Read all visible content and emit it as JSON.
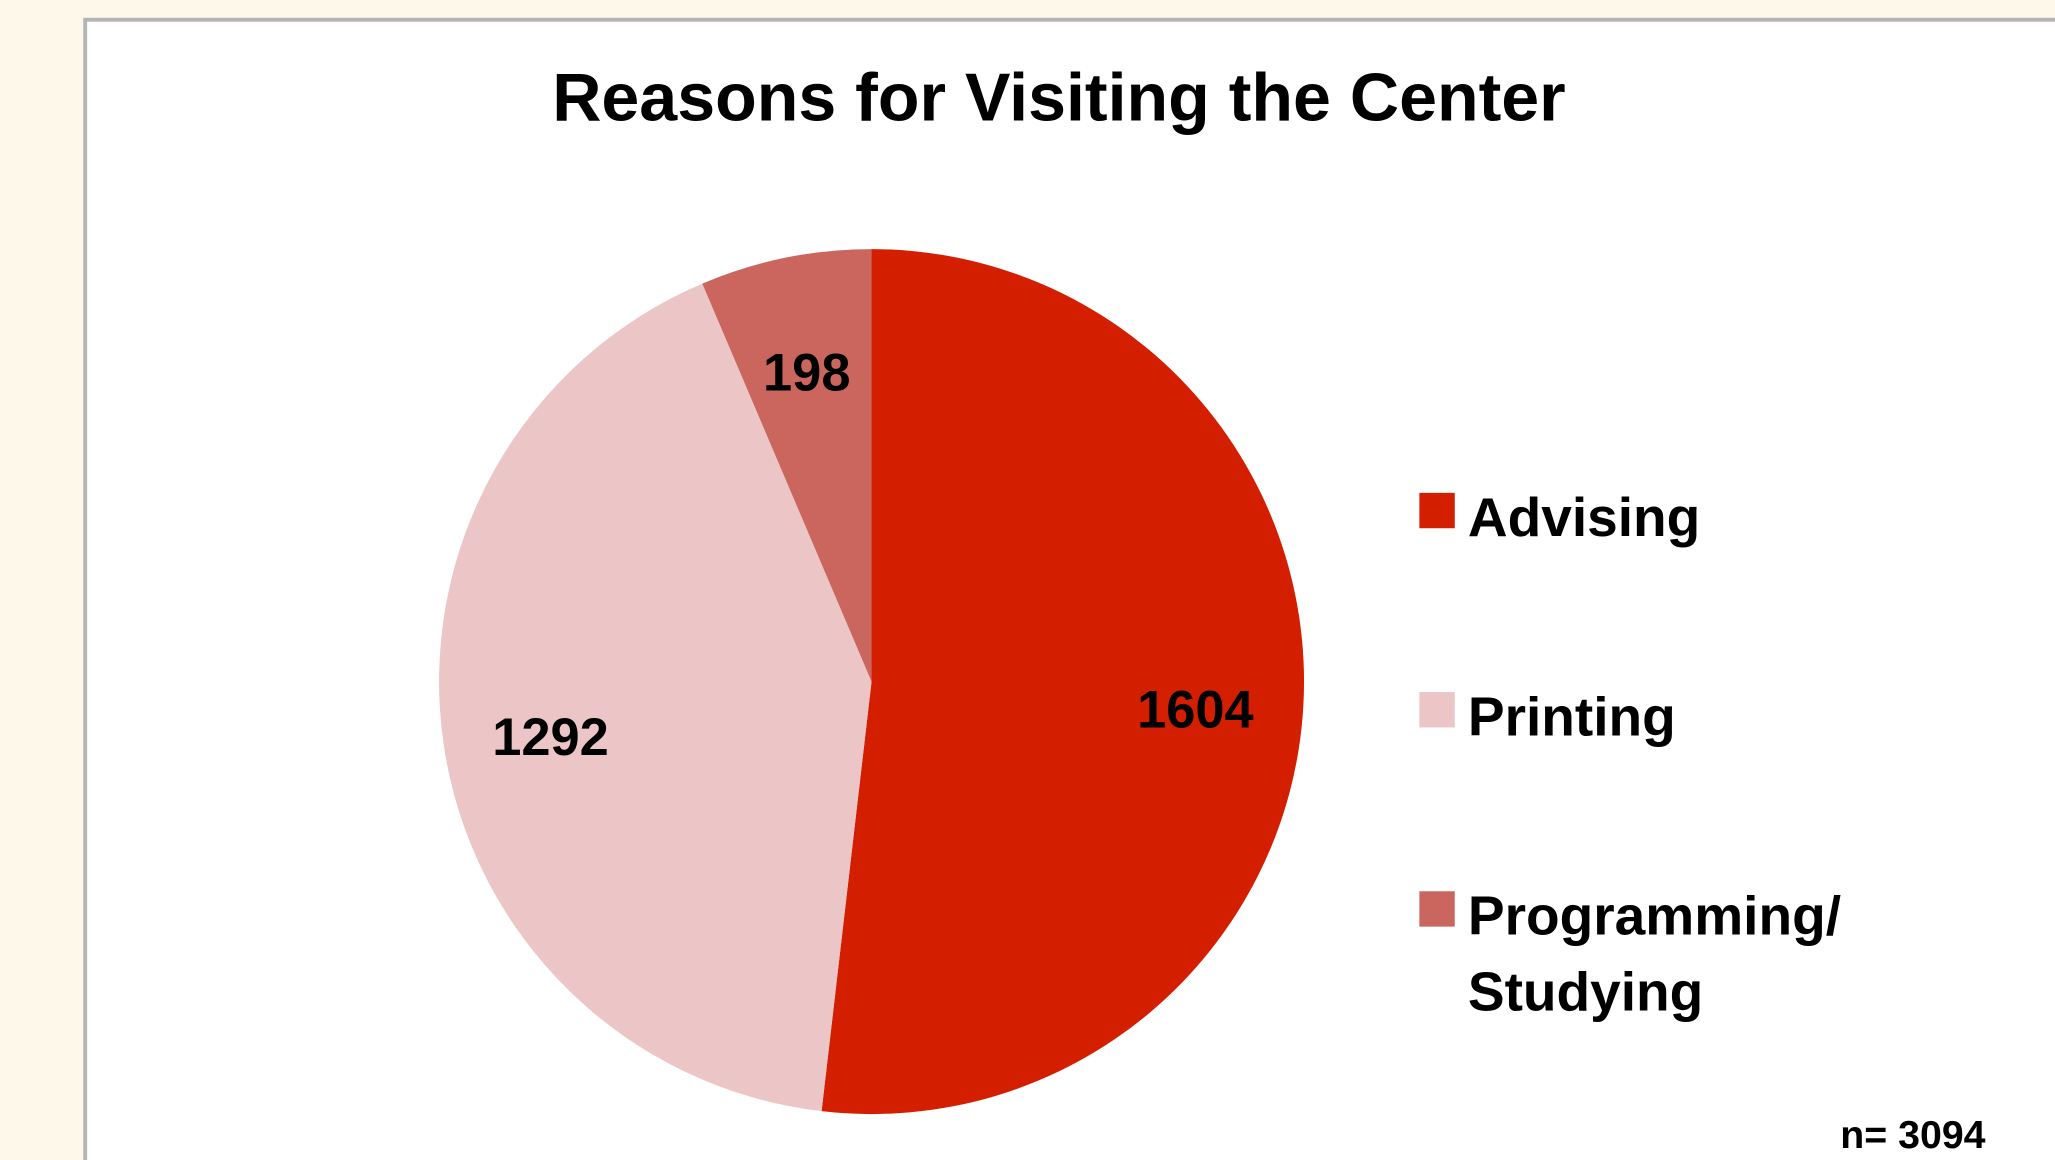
{
  "chart_data": {
    "type": "pie",
    "title": "Reasons for Visiting the Center",
    "categories": [
      "Advising",
      "Printing",
      "Programming/ Studying"
    ],
    "values": [
      1604,
      1292,
      198
    ],
    "colors": [
      "#d41e00",
      "#ecc6c6",
      "#cb665f"
    ],
    "annotation": "n= 3094",
    "legend": "right"
  }
}
